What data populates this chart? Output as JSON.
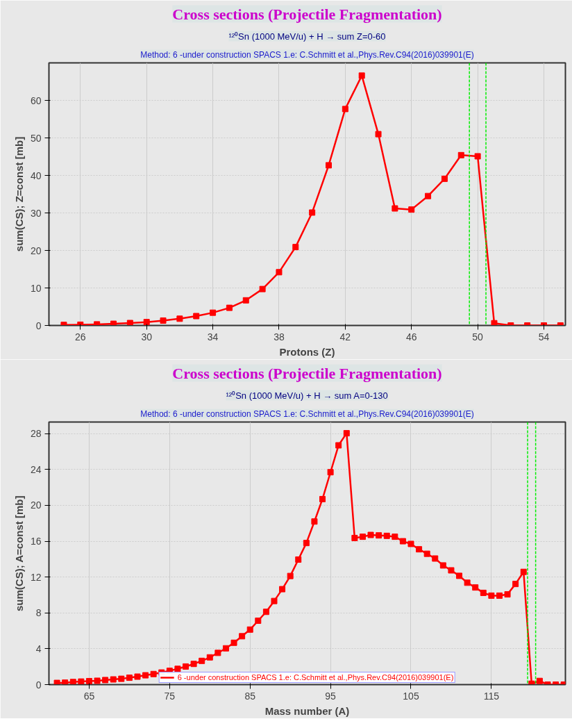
{
  "chart_data": [
    {
      "type": "line",
      "title": "Cross sections (Projectile Fragmentation)",
      "subtitle": "¹²⁰Sn (1000 MeV/u) + H → sum Z=0-60",
      "annotations": [
        "Method: 6 -under construction SPACS 1.e: C.Schmitt et al.,Phys.Rev.C94(2016)039901(E)"
      ],
      "xlabel": "Protons (Z)",
      "ylabel": "sum(CS); Z=const [mb]",
      "xlim": [
        24.1,
        55.3
      ],
      "ylim": [
        0,
        70
      ],
      "xticks": [
        26,
        30,
        34,
        38,
        42,
        46,
        50,
        54
      ],
      "yticks": [
        0,
        10,
        20,
        30,
        40,
        50,
        60
      ],
      "grid": true,
      "marker": "square",
      "line_style": "solid",
      "legend": false,
      "x": [
        25,
        26,
        27,
        28,
        29,
        30,
        31,
        32,
        33,
        34,
        35,
        36,
        37,
        38,
        39,
        40,
        41,
        42,
        43,
        44,
        45,
        46,
        47,
        48,
        49,
        50,
        51,
        52,
        53,
        54,
        55
      ],
      "series": [
        {
          "color": "#ff0000",
          "values": [
            0.15,
            0.2,
            0.3,
            0.45,
            0.65,
            0.9,
            1.3,
            1.8,
            2.5,
            3.4,
            4.7,
            6.7,
            9.7,
            14.2,
            20.9,
            30.1,
            42.7,
            57.7,
            66.6,
            51.0,
            31.2,
            30.9,
            34.5,
            39.1,
            45.4,
            45.1,
            0.6,
            0,
            0,
            0,
            0
          ]
        }
      ],
      "ref_lines": [
        {
          "axis": "x",
          "value": 49.5,
          "color": "#00ee00",
          "line_style": "dashed"
        },
        {
          "axis": "x",
          "value": 50.5,
          "color": "#00ee00",
          "line_style": "dashed"
        }
      ]
    },
    {
      "type": "line",
      "title": "Cross sections (Projectile Fragmentation)",
      "subtitle": "¹²⁰Sn (1000 MeV/u) + H → sum A=0-130",
      "annotations": [
        "Method: 6 -under construction SPACS 1.e: C.Schmitt et al.,Phys.Rev.C94(2016)039901(E)"
      ],
      "xlabel": "Mass number (A)",
      "ylabel": "sum(CS); A=const [mb]",
      "xlim": [
        60,
        124.2
      ],
      "ylim": [
        0,
        29.3
      ],
      "xticks": [
        65,
        75,
        85,
        95,
        105,
        115
      ],
      "yticks": [
        0,
        4,
        8,
        12,
        16,
        20,
        24,
        28
      ],
      "grid": true,
      "marker": "square",
      "line_style": "solid",
      "legend": "bottom",
      "x": [
        61,
        62,
        63,
        64,
        65,
        66,
        67,
        68,
        69,
        70,
        71,
        72,
        73,
        74,
        75,
        76,
        77,
        78,
        79,
        80,
        81,
        82,
        83,
        84,
        85,
        86,
        87,
        88,
        89,
        90,
        91,
        92,
        93,
        94,
        95,
        96,
        97,
        98,
        99,
        100,
        101,
        102,
        103,
        104,
        105,
        106,
        107,
        108,
        109,
        110,
        111,
        112,
        113,
        114,
        115,
        116,
        117,
        118,
        119,
        120,
        121,
        122,
        123,
        124
      ],
      "series": [
        {
          "name": "6 -under construction SPACS 1.e: C.Schmitt et al.,Phys.Rev.C94(2016)039901(E)",
          "color": "#ff0000",
          "values": [
            0.19,
            0.22,
            0.29,
            0.34,
            0.39,
            0.43,
            0.51,
            0.58,
            0.65,
            0.77,
            0.89,
            1.04,
            1.18,
            1.35,
            1.54,
            1.76,
            2.02,
            2.31,
            2.65,
            3.04,
            3.54,
            4.05,
            4.67,
            5.4,
            6.14,
            7.13,
            8.12,
            9.33,
            10.65,
            12.12,
            13.95,
            15.8,
            18.2,
            20.7,
            23.7,
            26.7,
            28.05,
            16.36,
            16.5,
            16.7,
            16.65,
            16.6,
            16.5,
            16.0,
            15.7,
            15.1,
            14.6,
            14.07,
            13.3,
            12.75,
            12.14,
            11.37,
            10.84,
            10.24,
            9.93,
            9.93,
            10.07,
            11.23,
            12.58,
            0.1,
            0.41,
            0,
            0,
            0
          ]
        }
      ],
      "ref_lines": [
        {
          "axis": "x",
          "value": 119.5,
          "color": "#00ee00",
          "line_style": "dashed"
        },
        {
          "axis": "x",
          "value": 120.5,
          "color": "#00ee00",
          "line_style": "dashed"
        }
      ]
    }
  ]
}
